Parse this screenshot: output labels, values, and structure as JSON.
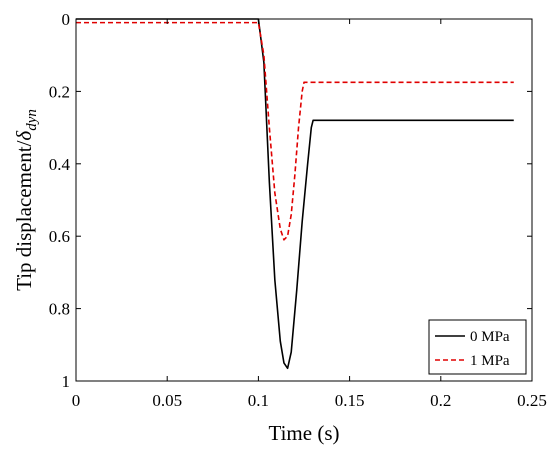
{
  "chart_data": {
    "type": "line",
    "xlabel": "Time (s)",
    "ylabel_main": "Tip displacement/",
    "ylabel_symbol": "δ",
    "ylabel_subscript": "dyn",
    "xlim": [
      0,
      0.25
    ],
    "ylim": [
      0,
      1
    ],
    "y_inverted": true,
    "grid": false,
    "legend_position": "bottom-right",
    "x_ticks": [
      0,
      0.05,
      0.1,
      0.15,
      0.2,
      0.25
    ],
    "x_tick_labels": [
      "0",
      "0.05",
      "0.1",
      "0.15",
      "0.2",
      "0.25"
    ],
    "y_ticks": [
      0,
      0.2,
      0.4,
      0.6,
      0.8,
      1
    ],
    "y_tick_labels": [
      "0",
      "0.2",
      "0.4",
      "0.6",
      "0.8",
      "1"
    ],
    "series": [
      {
        "name": "0 MPa",
        "color": "#000000",
        "style": "solid",
        "x": [
          0,
          0.1,
          0.103,
          0.106,
          0.109,
          0.112,
          0.114,
          0.116,
          0.118,
          0.121,
          0.124,
          0.127,
          0.129,
          0.13,
          0.24
        ],
        "y": [
          0,
          0,
          0.12,
          0.45,
          0.72,
          0.89,
          0.95,
          0.965,
          0.92,
          0.75,
          0.56,
          0.4,
          0.3,
          0.28,
          0.28
        ]
      },
      {
        "name": "1 MPa",
        "color": "#e00000",
        "style": "dashed",
        "x": [
          0,
          0.1,
          0.103,
          0.106,
          0.109,
          0.112,
          0.114,
          0.116,
          0.118,
          0.12,
          0.122,
          0.124,
          0.125,
          0.24
        ],
        "y": [
          0.01,
          0.01,
          0.1,
          0.3,
          0.48,
          0.58,
          0.61,
          0.6,
          0.54,
          0.43,
          0.3,
          0.2,
          0.175,
          0.175
        ]
      }
    ]
  }
}
